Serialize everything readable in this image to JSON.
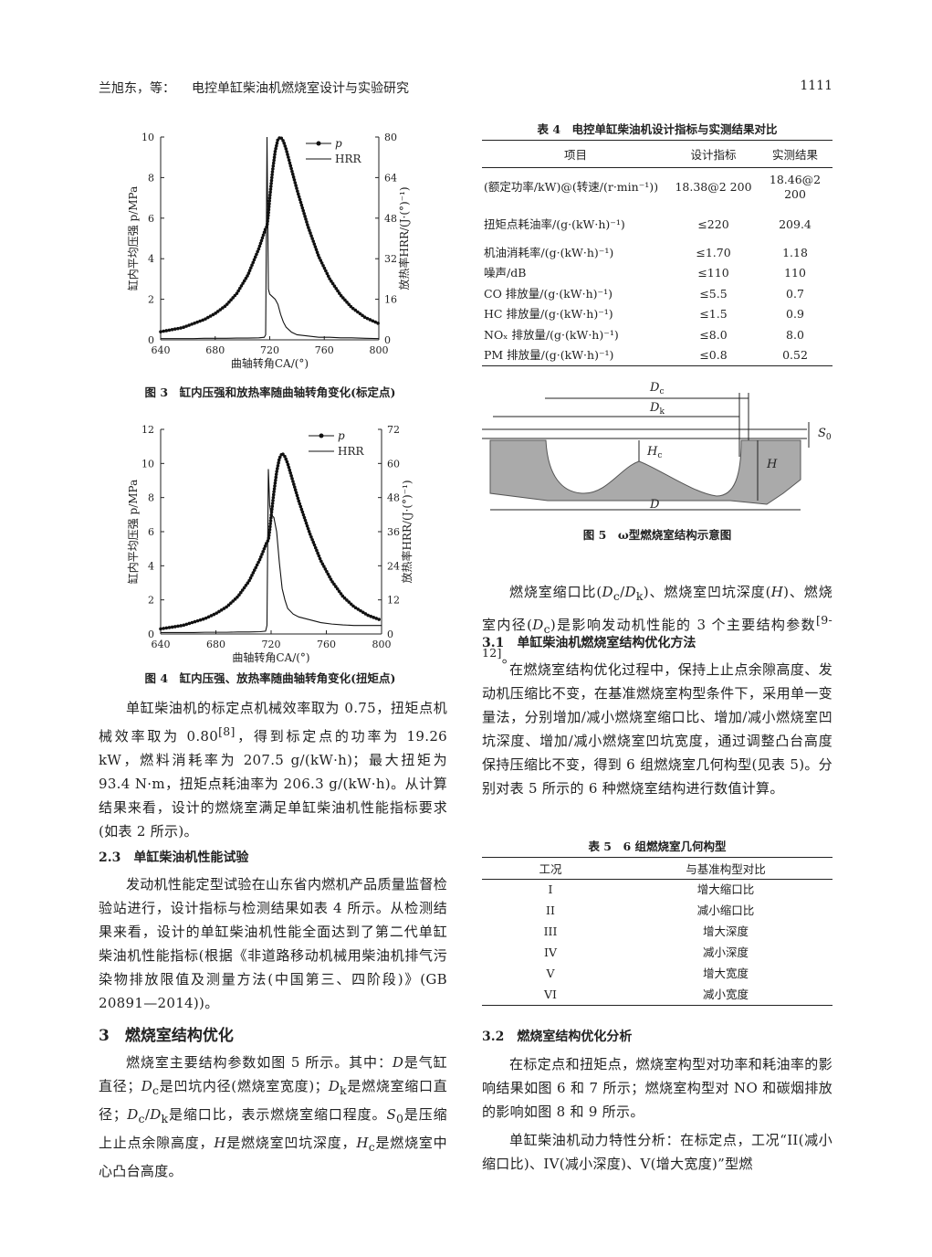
{
  "header": {
    "author": "兰旭东，等：",
    "title": "电控单缸柴油机燃烧室设计与实验研究",
    "page": "1111"
  },
  "chart_data": [
    {
      "type": "line",
      "caption": "图 3　缸内压强和放热率随曲轴转角变化(标定点)",
      "x_label": "曲轴转角CA/(°)",
      "y_label": "缸内平均压强 p/MPa",
      "y2_label": "放热率HRR/(J·(°)⁻¹)",
      "x": [
        640,
        648,
        656,
        664,
        672,
        680,
        688,
        696,
        704,
        712,
        716,
        717,
        718,
        719,
        720,
        722,
        724,
        726,
        728,
        730,
        732,
        736,
        740,
        748,
        756,
        764,
        772,
        780,
        790,
        800
      ],
      "xlim": [
        640,
        800
      ],
      "xticks": [
        640,
        680,
        720,
        760,
        800
      ],
      "ylim": [
        0,
        10
      ],
      "yticks": [
        0,
        2,
        4,
        6,
        8,
        10
      ],
      "y2lim": [
        0,
        80
      ],
      "y2ticks": [
        0,
        16,
        32,
        48,
        64,
        80
      ],
      "legend": "upper right",
      "series": [
        {
          "name": "p",
          "color": "#111111",
          "marker": "o",
          "values": [
            0.4,
            0.5,
            0.6,
            0.8,
            1.0,
            1.3,
            1.7,
            2.3,
            3.2,
            4.5,
            5.3,
            5.5,
            5.6,
            6.2,
            7.0,
            8.3,
            9.3,
            9.9,
            10.0,
            9.8,
            9.4,
            8.4,
            7.4,
            5.6,
            4.1,
            3.0,
            2.2,
            1.6,
            1.1,
            0.8
          ]
        },
        {
          "name": "HRR",
          "color": "#111111",
          "axis": "y2",
          "values": [
            0.5,
            0.5,
            0.5,
            0.5,
            0.6,
            0.6,
            0.6,
            0.7,
            0.7,
            0.8,
            1,
            2,
            80,
            20,
            18,
            17,
            16,
            14,
            10,
            7,
            5,
            3,
            2,
            1.5,
            1,
            1,
            0.8,
            0.8,
            0.6,
            0.5
          ]
        }
      ]
    },
    {
      "type": "line",
      "caption": "图 4　缸内压强、放热率随曲轴转角变化(扭矩点)",
      "x_label": "曲轴转角CA/(°)",
      "y_label": "缸内平均压强 p/MPa",
      "y2_label": "放热率HRR/(J·(°)⁻¹)",
      "x": [
        640,
        648,
        656,
        664,
        672,
        680,
        688,
        696,
        704,
        712,
        716,
        717,
        718,
        719,
        720,
        722,
        724,
        726,
        728,
        730,
        732,
        736,
        740,
        748,
        756,
        764,
        772,
        780,
        790,
        800
      ],
      "xlim": [
        640,
        800
      ],
      "xticks": [
        640,
        680,
        720,
        760,
        800
      ],
      "ylim": [
        0,
        12
      ],
      "yticks": [
        0,
        2,
        4,
        6,
        8,
        10,
        12
      ],
      "y2lim": [
        0,
        72
      ],
      "y2ticks": [
        0,
        12,
        24,
        36,
        48,
        60,
        72
      ],
      "legend": "upper right",
      "series": [
        {
          "name": "p",
          "color": "#111111",
          "marker": "o",
          "values": [
            0.3,
            0.4,
            0.5,
            0.7,
            0.9,
            1.2,
            1.6,
            2.2,
            3.1,
            4.4,
            5.2,
            5.4,
            5.5,
            6.1,
            6.9,
            8.3,
            9.5,
            10.3,
            10.6,
            10.4,
            10.0,
            8.9,
            7.8,
            5.9,
            4.3,
            3.1,
            2.2,
            1.6,
            1.1,
            0.8
          ]
        },
        {
          "name": "HRR",
          "color": "#111111",
          "axis": "y2",
          "values": [
            0.5,
            0.5,
            0.5,
            0.5,
            0.6,
            0.6,
            0.6,
            0.7,
            0.7,
            0.8,
            1,
            3,
            58,
            45,
            42,
            41,
            36,
            25,
            16,
            12,
            9,
            7,
            6,
            5,
            4,
            3.5,
            3.2,
            3,
            3,
            3
          ]
        }
      ]
    }
  ],
  "table4": {
    "title": "表 4　电控单缸柴油机设计指标与实测结果对比",
    "columns": [
      "项目",
      "设计指标",
      "实测结果"
    ],
    "rows": [
      [
        "(额定功率/kW)@(转速/(r·min⁻¹))",
        "18.38@2 200",
        "18.46@2 200"
      ],
      [
        "扭矩点耗油率/(g·(kW·h)⁻¹)",
        "≤220",
        "209.4"
      ],
      [
        "机油消耗率/(g·(kW·h)⁻¹)",
        "≤1.70",
        "1.18"
      ],
      [
        "噪声/dB",
        "≤110",
        "110"
      ],
      [
        "CO 排放量/(g·(kW·h)⁻¹)",
        "≤5.5",
        "0.7"
      ],
      [
        "HC 排放量/(g·(kW·h)⁻¹)",
        "≤1.5",
        "0.9"
      ],
      [
        "NOₓ 排放量/(g·(kW·h)⁻¹)",
        "≤8.0",
        "8.0"
      ],
      [
        "PM 排放量/(g·(kW·h)⁻¹)",
        "≤0.8",
        "0.52"
      ]
    ]
  },
  "figure5": {
    "labels": [
      {
        "i": "D",
        "sub": "c"
      },
      {
        "i": "D",
        "sub": "k"
      },
      {
        "i": "S",
        "sub": "0"
      },
      {
        "i": "H",
        "sub": "c"
      },
      {
        "i": "H"
      },
      {
        "i": "D"
      }
    ],
    "caption": "图 5　ω型燃烧室结构示意图"
  },
  "table5": {
    "title": "表 5　6 组燃烧室几何构型",
    "columns": [
      "工况",
      "与基准构型对比"
    ],
    "rows": [
      [
        "I",
        "增大缩口比"
      ],
      [
        "II",
        "减小缩口比"
      ],
      [
        "III",
        "增大深度"
      ],
      [
        "IV",
        "减小深度"
      ],
      [
        "V",
        "增大宽度"
      ],
      [
        "VI",
        "减小宽度"
      ]
    ]
  },
  "headings": [
    "2.3　单缸柴油机性能试验",
    "3　燃烧室结构优化",
    "3.1　单缸柴油机燃烧室结构优化方法",
    "3.2　燃烧室结构优化分析"
  ],
  "paragraphs": [
    [
      "单缸柴油机的标定点机械效率取为 0.75，扭矩点机械效率取为 0.80",
      {
        "sup": "[8]"
      },
      "，得到标定点的功率为 19.26 kW，燃料消耗率为 207.5 g/(kW·h)；最大扭矩为 93.4 N·m，扭矩点耗油率为 206.3 g/(kW·h)。从计算结果来看，设计的燃烧室满足单缸柴油机性能指标要求(如表 2 所示)。"
    ],
    [
      "发动机性能定型试验在山东省内燃机产品质量监督检验站进行，设计指标与检测结果如表 4 所示。从检测结果来看，设计的单缸柴油机性能全面达到了第二代单缸柴油机性能指标(根据《非道路移动机械用柴油机排气污染物排放限值及测量方法(中国第三、四阶段)》(GB 20891—2014))。"
    ],
    [
      "燃烧室主要结构参数如图 5 所示。其中：",
      {
        "i": "D"
      },
      "是气缸直径；",
      {
        "i": "D"
      },
      {
        "sub": "c"
      },
      "是凹坑内径(燃烧室宽度)；",
      {
        "i": "D"
      },
      {
        "sub": "k"
      },
      "是燃烧室缩口直径；",
      {
        "i": "D"
      },
      {
        "sub": "c"
      },
      "/",
      {
        "i": "D"
      },
      {
        "sub": "k"
      },
      "是缩口比，表示燃烧室缩口程度。",
      {
        "i": "S"
      },
      {
        "sub": "0"
      },
      "是压缩上止点余隙高度，",
      {
        "i": "H"
      },
      "是燃烧室凹坑深度，",
      {
        "i": "H"
      },
      {
        "sub": "c"
      },
      "是燃烧室中心凸台高度。"
    ],
    [
      "燃烧室缩口比(",
      {
        "i": "D"
      },
      {
        "sub": "c"
      },
      "/",
      {
        "i": "D"
      },
      {
        "sub": "k"
      },
      ")、燃烧室凹坑深度(",
      {
        "i": "H"
      },
      ")、燃烧室内径(",
      {
        "i": "D"
      },
      {
        "sub": "c"
      },
      ")是影响发动机性能的 3 个主要结构参数",
      {
        "sup": "[9-12]"
      },
      "。"
    ],
    [
      "在燃烧室结构优化过程中，保持上止点余隙高度、发动机压缩比不变，在基准燃烧室构型条件下，采用单一变量法，分别增加/减小燃烧室缩口比、增加/减小燃烧室凹坑深度、增加/减小燃烧室凹坑宽度，通过调整凸台高度保持压缩比不变，得到 6 组燃烧室几何构型(见表 5)。分别对表 5 所示的 6 种燃烧室结构进行数值计算。"
    ],
    [
      "在标定点和扭矩点，燃烧室构型对功率和耗油率的影响结果如图 6 和 7 所示；燃烧室构型对 NO 和碳烟排放的影响如图 8 和 9 所示。"
    ],
    [
      "单缸柴油机动力特性分析：在标定点，工况“II(减小缩口比)、IV(减小深度)、V(增大宽度)”型燃"
    ]
  ]
}
